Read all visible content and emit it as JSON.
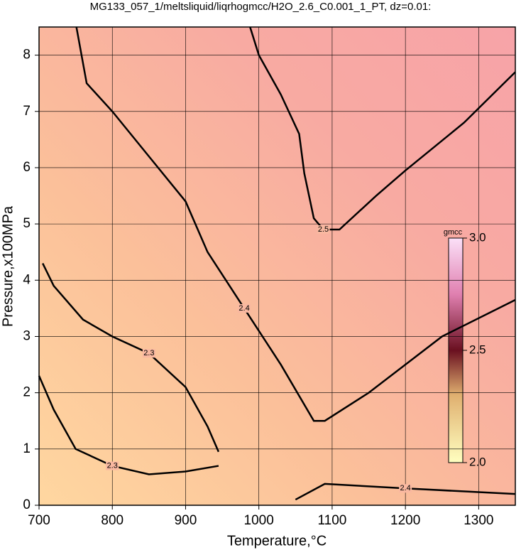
{
  "chart_data": {
    "type": "contour",
    "title": "MG133_057_1/meltsliquid/liqrhogmcc/H2O_2.6_C0.001_1_PT, dz=0.01:",
    "x_label": "Temperature,°C",
    "y_label": "Pressure,x100MPa",
    "xlim": [
      700,
      1350
    ],
    "xticks": [
      700,
      800,
      900,
      1000,
      1100,
      1200,
      1300
    ],
    "ylim": [
      0,
      8.5
    ],
    "yticks": [
      0,
      1,
      2,
      3,
      4,
      5,
      6,
      7,
      8
    ],
    "grid": true,
    "colorbar": {
      "label": "gmcc",
      "lim": [
        2.0,
        3.0
      ],
      "ticks": [
        {
          "value": 2.0,
          "label": "2.0"
        },
        2.5,
        {
          "value": 3.0,
          "label": "3.0"
        }
      ]
    },
    "contours": [
      {
        "level": 2.5,
        "x": [
          988,
          1000,
          1030,
          1055,
          1062,
          1075,
          1088,
          1110,
          1160,
          1200,
          1280,
          1350
        ],
        "y": [
          8.5,
          8.0,
          7.3,
          6.6,
          5.9,
          5.1,
          4.9,
          4.9,
          5.5,
          5.95,
          6.8,
          7.7
        ]
      },
      {
        "level": 2.4,
        "x": [
          751,
          765,
          800,
          850,
          900,
          930,
          980,
          1030,
          1075,
          1090,
          1150,
          1250,
          1350
        ],
        "y": [
          8.5,
          7.5,
          7.0,
          6.2,
          5.4,
          4.5,
          3.5,
          2.5,
          1.5,
          1.5,
          2.0,
          3.0,
          3.65
        ]
      },
      {
        "level": 2.3,
        "x": [
          705,
          720,
          760,
          800,
          850,
          900,
          930,
          945
        ],
        "y": [
          4.3,
          3.9,
          3.3,
          3.0,
          2.7,
          2.1,
          1.4,
          0.95
        ]
      },
      {
        "level": 2.3,
        "x": [
          700,
          720,
          750,
          800,
          850,
          900,
          945
        ],
        "y": [
          2.3,
          1.7,
          1.0,
          0.7,
          0.55,
          0.6,
          0.7
        ]
      },
      {
        "level": 2.4,
        "x": [
          1050,
          1090,
          1200,
          1350
        ],
        "y": [
          0.1,
          0.38,
          0.3,
          0.2
        ]
      }
    ]
  }
}
